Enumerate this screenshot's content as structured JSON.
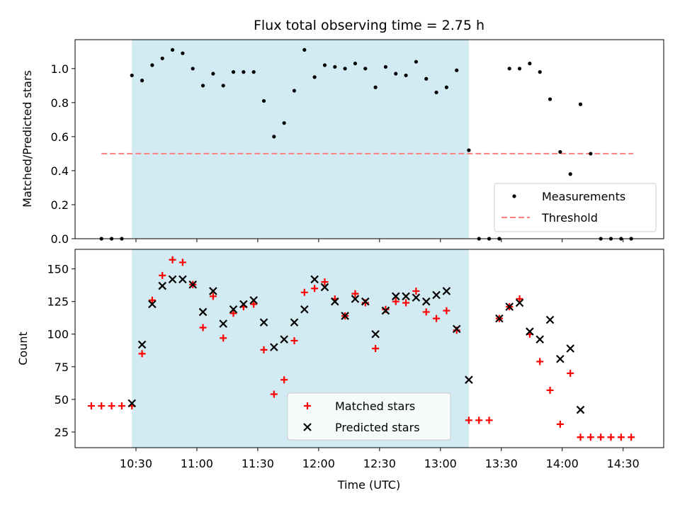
{
  "chart_data": [
    {
      "type": "scatter",
      "title": "Flux total observing time = 2.75 h",
      "ylabel": "Matched/Predicted stars",
      "xlabel": "",
      "ylim": [
        0,
        1.17
      ],
      "yticks": [
        "0.0",
        "0.2",
        "0.4",
        "0.6",
        "0.8",
        "1.0"
      ],
      "ytick_values": [
        0,
        0.2,
        0.4,
        0.6,
        0.8,
        1.0
      ],
      "xlim": [
        "10:00",
        "14:50"
      ],
      "highlight_span": [
        "10:28",
        "13:14"
      ],
      "highlight_color": "#add8e6",
      "legend_position": "lower-right",
      "threshold": {
        "name": "Threshold",
        "y": 0.5,
        "x_from": "10:13",
        "x_to": "14:35",
        "color": "#ff7f7f"
      },
      "series": [
        {
          "name": "Measurements",
          "color": "#000000",
          "x": [
            "10:13",
            "10:18",
            "10:23",
            "10:28",
            "10:33",
            "10:38",
            "10:43",
            "10:48",
            "10:53",
            "10:58",
            "11:03",
            "11:08",
            "11:13",
            "11:18",
            "11:23",
            "11:28",
            "11:33",
            "11:38",
            "11:43",
            "11:48",
            "11:53",
            "11:58",
            "12:03",
            "12:08",
            "12:13",
            "12:18",
            "12:23",
            "12:28",
            "12:33",
            "12:38",
            "12:43",
            "12:48",
            "12:53",
            "12:58",
            "13:03",
            "13:08",
            "13:14",
            "13:19",
            "13:24",
            "13:29",
            "13:34",
            "13:39",
            "13:44",
            "13:49",
            "13:54",
            "13:59",
            "14:04",
            "14:09",
            "14:14",
            "14:19",
            "14:24",
            "14:29",
            "14:34"
          ],
          "y": [
            0,
            0,
            0,
            0.96,
            0.93,
            1.02,
            1.06,
            1.11,
            1.09,
            1.0,
            0.9,
            0.97,
            0.9,
            0.98,
            0.98,
            0.98,
            0.81,
            0.6,
            0.68,
            0.87,
            1.11,
            0.95,
            1.02,
            1.01,
            1.0,
            1.03,
            1.0,
            0.89,
            1.01,
            0.97,
            0.96,
            1.04,
            0.94,
            0.86,
            0.89,
            0.99,
            0.52,
            0,
            0,
            0,
            1.0,
            1.0,
            1.03,
            0.98,
            0.82,
            0.51,
            0.38,
            0.79,
            0.5,
            0,
            0,
            0,
            0
          ]
        }
      ]
    },
    {
      "type": "scatter",
      "title": "",
      "ylabel": "Count",
      "xlabel": "Time (UTC)",
      "ylim": [
        13,
        165
      ],
      "yticks": [
        "25",
        "50",
        "75",
        "100",
        "125",
        "150"
      ],
      "ytick_values": [
        25,
        50,
        75,
        100,
        125,
        150
      ],
      "xlim": [
        "10:00",
        "14:50"
      ],
      "xticks": [
        "10:30",
        "11:00",
        "11:30",
        "12:00",
        "12:30",
        "13:00",
        "13:30",
        "14:00",
        "14:30"
      ],
      "highlight_span": [
        "10:28",
        "13:14"
      ],
      "highlight_color": "#add8e6",
      "legend_position": "lower-center",
      "series": [
        {
          "name": "Matched stars",
          "marker": "plus",
          "color": "#ff0000",
          "x": [
            "10:08",
            "10:13",
            "10:18",
            "10:23",
            "10:28",
            "10:33",
            "10:38",
            "10:43",
            "10:48",
            "10:53",
            "10:58",
            "11:03",
            "11:08",
            "11:13",
            "11:18",
            "11:23",
            "11:28",
            "11:33",
            "11:38",
            "11:43",
            "11:48",
            "11:53",
            "11:58",
            "12:03",
            "12:08",
            "12:13",
            "12:18",
            "12:23",
            "12:28",
            "12:33",
            "12:38",
            "12:43",
            "12:48",
            "12:53",
            "12:58",
            "13:03",
            "13:08",
            "13:14",
            "13:19",
            "13:24",
            "13:29",
            "13:34",
            "13:39",
            "13:44",
            "13:49",
            "13:54",
            "13:59",
            "14:04",
            "14:09",
            "14:14",
            "14:19",
            "14:24",
            "14:29",
            "14:34"
          ],
          "y": [
            45,
            45,
            45,
            45,
            45,
            85,
            126,
            145,
            157,
            155,
            138,
            105,
            129,
            97,
            116,
            121,
            123,
            88,
            54,
            65,
            95,
            132,
            135,
            140,
            127,
            114,
            131,
            124,
            89,
            119,
            125,
            124,
            133,
            117,
            112,
            118,
            103,
            34,
            34,
            34,
            112,
            121,
            127,
            100,
            79,
            57,
            31,
            70,
            21,
            21,
            21,
            21,
            21,
            21
          ]
        },
        {
          "name": "Predicted stars",
          "marker": "x",
          "color": "#000000",
          "x": [
            "10:28",
            "10:33",
            "10:38",
            "10:43",
            "10:48",
            "10:53",
            "10:58",
            "11:03",
            "11:08",
            "11:13",
            "11:18",
            "11:23",
            "11:28",
            "11:33",
            "11:38",
            "11:43",
            "11:48",
            "11:53",
            "11:58",
            "12:03",
            "12:08",
            "12:13",
            "12:18",
            "12:23",
            "12:28",
            "12:33",
            "12:38",
            "12:43",
            "12:48",
            "12:53",
            "12:58",
            "13:03",
            "13:08",
            "13:14",
            "13:29",
            "13:34",
            "13:39",
            "13:44",
            "13:49",
            "13:54",
            "13:59",
            "14:04",
            "14:09"
          ],
          "y": [
            47,
            92,
            123,
            137,
            142,
            142,
            138,
            117,
            133,
            108,
            119,
            123,
            126,
            109,
            90,
            96,
            109,
            119,
            142,
            136,
            125,
            114,
            127,
            125,
            100,
            118,
            129,
            129,
            128,
            125,
            130,
            133,
            104,
            65,
            112,
            121,
            124,
            102,
            96,
            111,
            81,
            89,
            42
          ]
        }
      ]
    }
  ]
}
